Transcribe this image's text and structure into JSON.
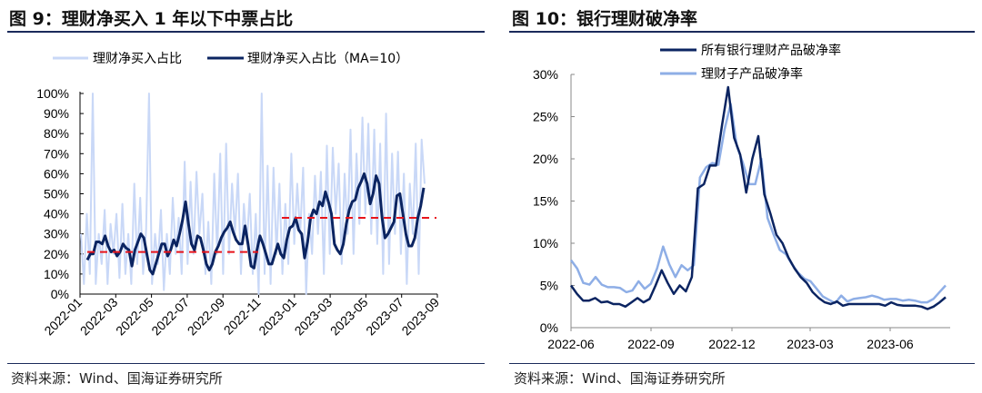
{
  "left": {
    "title": "图 9：理财净买入 1 年以下中票占比",
    "source": "资料来源：Wind、国海证券研究所"
  },
  "right": {
    "title": "图 10：银行理财破净率",
    "source": "资料来源：Wind、国海证券研究所"
  },
  "chart_data": [
    {
      "type": "line",
      "title": "理财净买入 1 年以下中票占比",
      "ylim": [
        0,
        1
      ],
      "yticks": [
        "0%",
        "10%",
        "20%",
        "30%",
        "40%",
        "50%",
        "60%",
        "70%",
        "80%",
        "90%",
        "100%"
      ],
      "xticks": [
        "2022-01",
        "2022-03",
        "2022-05",
        "2022-07",
        "2022-09",
        "2022-11",
        "2023-01",
        "2023-03",
        "2023-05",
        "2023-07",
        "2023-09"
      ],
      "x_range": [
        "2022-01",
        "2023-09"
      ],
      "colors": {
        "raw": "#c9d8f7",
        "ma": "#0b2461",
        "ref": "#e8141b"
      },
      "series": [
        {
          "name": "理财净买入占比",
          "values": [
            0.3,
            0.05,
            0.4,
            0.1,
            1.0,
            0.05,
            0.3,
            0.15,
            0.42,
            0.05,
            0.35,
            0.2,
            0.4,
            0.08,
            0.45,
            0.1,
            0.3,
            0.05,
            0.55,
            0.15,
            0.48,
            0.1,
            0.32,
            1.0,
            0.05,
            0.3,
            0.15,
            0.42,
            0.02,
            0.3,
            0.1,
            0.48,
            0.2,
            0.38,
            0.1,
            0.66,
            0.15,
            0.56,
            0.2,
            0.61,
            0.3,
            0.5,
            0.1,
            0.36,
            0.05,
            0.6,
            0.2,
            0.7,
            0.1,
            0.75,
            0.2,
            0.55,
            0.3,
            0.6,
            0.1,
            0.45,
            0.25,
            0.5,
            0.1,
            0.4,
            0.0,
            1.0,
            0.1,
            0.64,
            0.05,
            0.63,
            0.2,
            0.55,
            0.1,
            0.45,
            0.15,
            0.7,
            0.25,
            0.55,
            0.3,
            0.63,
            0.0,
            0.4,
            0.2,
            0.59,
            0.3,
            0.61,
            0.1,
            0.74,
            0.2,
            0.73,
            0.4,
            0.65,
            0.15,
            0.6,
            0.3,
            0.82,
            0.2,
            0.7,
            0.35,
            0.88,
            0.4,
            0.85,
            0.3,
            0.82,
            0.25,
            0.75,
            0.1,
            0.9,
            0.15,
            0.7,
            0.3,
            0.71,
            0.2,
            0.6,
            0.05,
            0.55,
            0.3,
            0.75,
            0.1,
            0.77,
            0.55
          ]
        },
        {
          "name": "理财净买入占比（MA=10）",
          "values": [
            0.17,
            0.2,
            0.2,
            0.26,
            0.26,
            0.25,
            0.29,
            0.24,
            0.21,
            0.22,
            0.19,
            0.21,
            0.25,
            0.23,
            0.22,
            0.14,
            0.22,
            0.26,
            0.3,
            0.28,
            0.2,
            0.12,
            0.1,
            0.15,
            0.2,
            0.25,
            0.25,
            0.19,
            0.22,
            0.27,
            0.24,
            0.3,
            0.37,
            0.46,
            0.35,
            0.25,
            0.22,
            0.29,
            0.28,
            0.22,
            0.15,
            0.12,
            0.15,
            0.21,
            0.24,
            0.28,
            0.31,
            0.33,
            0.36,
            0.31,
            0.27,
            0.25,
            0.25,
            0.34,
            0.25,
            0.14,
            0.13,
            0.22,
            0.29,
            0.25,
            0.2,
            0.15,
            0.15,
            0.2,
            0.25,
            0.2,
            0.18,
            0.27,
            0.33,
            0.34,
            0.38,
            0.32,
            0.3,
            0.18,
            0.26,
            0.38,
            0.42,
            0.4,
            0.46,
            0.44,
            0.51,
            0.46,
            0.4,
            0.25,
            0.22,
            0.2,
            0.25,
            0.35,
            0.42,
            0.46,
            0.47,
            0.53,
            0.56,
            0.6,
            0.55,
            0.45,
            0.5,
            0.59,
            0.55,
            0.38,
            0.28,
            0.3,
            0.33,
            0.36,
            0.49,
            0.5,
            0.4,
            0.3,
            0.24,
            0.24,
            0.28,
            0.38,
            0.44,
            0.53
          ]
        }
      ],
      "reference_lines": [
        {
          "value": 0.21,
          "from": "2022-01",
          "to": "2022-12"
        },
        {
          "value": 0.38,
          "from": "2023-01",
          "to": "2023-09"
        }
      ]
    },
    {
      "type": "line",
      "title": "银行理财破净率",
      "ylim": [
        0,
        0.3
      ],
      "yticks": [
        "0%",
        "5%",
        "10%",
        "15%",
        "20%",
        "25%",
        "30%"
      ],
      "xticks": [
        "2022-06",
        "2022-09",
        "2022-12",
        "2023-03",
        "2023-06"
      ],
      "colors": {
        "all": "#0b2461",
        "sub": "#8eaee6"
      },
      "series": [
        {
          "name": "所有银行理财产品破净率",
          "values": [
            0.05,
            0.04,
            0.032,
            0.032,
            0.035,
            0.03,
            0.031,
            0.028,
            0.028,
            0.025,
            0.03,
            0.035,
            0.03,
            0.034,
            0.05,
            0.068,
            0.053,
            0.04,
            0.05,
            0.043,
            0.06,
            0.165,
            0.17,
            0.192,
            0.192,
            0.24,
            0.285,
            0.225,
            0.205,
            0.16,
            0.2,
            0.227,
            0.158,
            0.135,
            0.11,
            0.1,
            0.083,
            0.07,
            0.06,
            0.053,
            0.042,
            0.035,
            0.03,
            0.028,
            0.031,
            0.026,
            0.028,
            0.028,
            0.028,
            0.028,
            0.028,
            0.028,
            0.026,
            0.03,
            0.027,
            0.026,
            0.026,
            0.026,
            0.025,
            0.022,
            0.025,
            0.03,
            0.036
          ]
        },
        {
          "name": "理财子产品破净率",
          "values": [
            0.08,
            0.07,
            0.053,
            0.051,
            0.06,
            0.051,
            0.048,
            0.048,
            0.047,
            0.042,
            0.044,
            0.055,
            0.046,
            0.052,
            0.07,
            0.096,
            0.075,
            0.06,
            0.074,
            0.068,
            0.074,
            0.178,
            0.19,
            0.195,
            0.193,
            0.235,
            0.265,
            0.215,
            0.195,
            0.17,
            0.17,
            0.2,
            0.13,
            0.11,
            0.092,
            0.087,
            0.075,
            0.065,
            0.058,
            0.055,
            0.046,
            0.037,
            0.033,
            0.029,
            0.038,
            0.031,
            0.034,
            0.035,
            0.036,
            0.038,
            0.036,
            0.033,
            0.034,
            0.034,
            0.032,
            0.033,
            0.032,
            0.03,
            0.03,
            0.034,
            0.042,
            0.05
          ]
        }
      ]
    }
  ]
}
